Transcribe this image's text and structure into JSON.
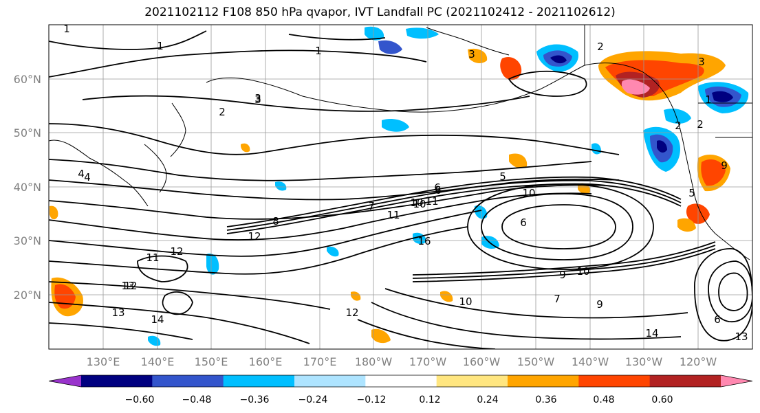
{
  "title": "2021102112 F108 850 hPa qvapor, IVT Landfall PC (2021102412 - 2021102612)",
  "lat_labels": [
    "60°N",
    "50°N",
    "40°N",
    "30°N",
    "20°N"
  ],
  "lon_labels": [
    "130°E",
    "140°E",
    "150°E",
    "160°E",
    "170°E",
    "180°W",
    "170°W",
    "160°W",
    "150°W",
    "140°W",
    "130°W",
    "120°W"
  ],
  "colorbar": {
    "ticks": [
      "−0.60",
      "−0.48",
      "−0.36",
      "−0.24",
      "−0.12",
      "0.12",
      "0.24",
      "0.36",
      "0.48",
      "0.60"
    ],
    "colors": [
      "#9933cc",
      "#000080",
      "#3355cc",
      "#00bfff",
      "#aee4ff",
      "#ffffff",
      "#ffe680",
      "#ffa500",
      "#ff4500",
      "#b22222",
      "#ff88b0"
    ]
  },
  "contour_labels": [
    "1",
    "1",
    "1",
    "2",
    "2",
    "3",
    "3",
    "2",
    "4",
    "5",
    "6",
    "7",
    "8",
    "10",
    "11",
    "12",
    "12",
    "11",
    "13",
    "14",
    "13",
    "12",
    "11",
    "10",
    "9",
    "10",
    "6",
    "14",
    "13",
    "6",
    "16",
    "10",
    "7",
    "9",
    "3",
    "2",
    "1",
    "3",
    "5",
    "4",
    "12",
    "10",
    "6",
    "9"
  ]
}
